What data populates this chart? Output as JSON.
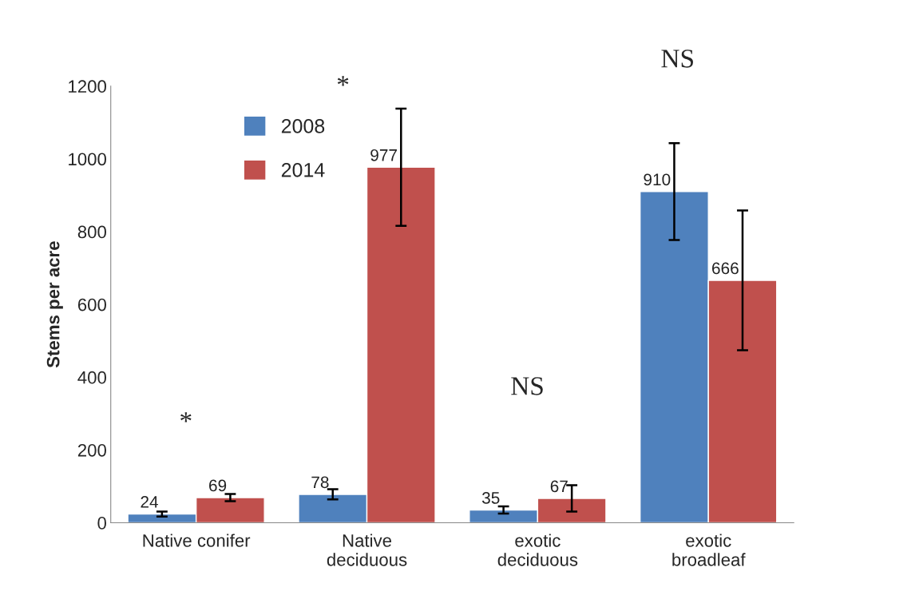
{
  "chart_data": {
    "type": "bar",
    "ylabel": "Stems per acre",
    "categories": [
      "Native conifer",
      "Native\ndeciduous",
      "exotic\ndeciduous",
      "exotic\nbroadleaf"
    ],
    "series": [
      {
        "name": "2008",
        "color": "#4f81bd",
        "values": [
          24,
          78,
          35,
          910
        ],
        "errors": [
          7,
          14,
          10,
          133
        ]
      },
      {
        "name": "2014",
        "color": "#c0504d",
        "values": [
          69,
          977,
          67,
          666
        ],
        "errors": [
          10,
          161,
          36,
          192
        ]
      }
    ],
    "ylim": [
      0,
      1200
    ],
    "yticks": [
      0,
      200,
      400,
      600,
      800,
      1000,
      1200
    ],
    "data_labels": true,
    "grid": false,
    "legend": "top left",
    "annotations": [
      "*",
      "*",
      "NS",
      "NS"
    ]
  }
}
